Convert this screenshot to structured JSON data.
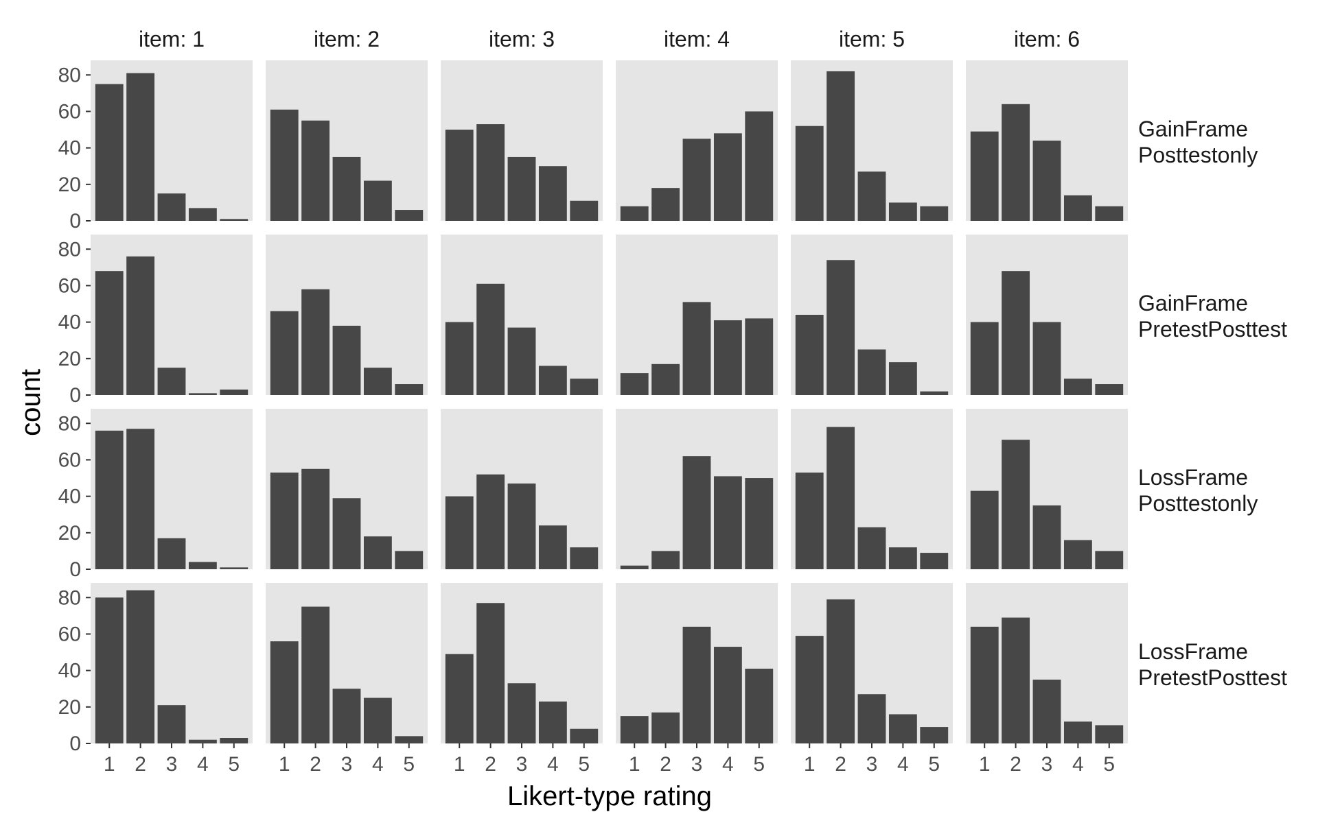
{
  "chart_data": {
    "type": "bar",
    "layout": "facet_grid",
    "xlabel": "Likert-type rating",
    "ylabel": "count",
    "categories": [
      "1",
      "2",
      "3",
      "4",
      "5"
    ],
    "ylim": [
      0,
      88
    ],
    "yticks": [
      0,
      20,
      40,
      60,
      80
    ],
    "grid": false,
    "columns": [
      "item: 1",
      "item: 2",
      "item: 3",
      "item: 4",
      "item: 5",
      "item: 6"
    ],
    "rows": [
      {
        "label": [
          "GainFrame",
          "Posttestonly"
        ],
        "values": [
          [
            75,
            81,
            15,
            7,
            1
          ],
          [
            61,
            55,
            35,
            22,
            6
          ],
          [
            50,
            53,
            35,
            30,
            11
          ],
          [
            8,
            18,
            45,
            48,
            60
          ],
          [
            52,
            82,
            27,
            10,
            8
          ],
          [
            49,
            64,
            44,
            14,
            8
          ]
        ]
      },
      {
        "label": [
          "GainFrame",
          "PretestPosttest"
        ],
        "values": [
          [
            68,
            76,
            15,
            1,
            3
          ],
          [
            46,
            58,
            38,
            15,
            6
          ],
          [
            40,
            61,
            37,
            16,
            9
          ],
          [
            12,
            17,
            51,
            41,
            42
          ],
          [
            44,
            74,
            25,
            18,
            2
          ],
          [
            40,
            68,
            40,
            9,
            6
          ]
        ]
      },
      {
        "label": [
          "LossFrame",
          "Posttestonly"
        ],
        "values": [
          [
            76,
            77,
            17,
            4,
            1
          ],
          [
            53,
            55,
            39,
            18,
            10
          ],
          [
            40,
            52,
            47,
            24,
            12
          ],
          [
            2,
            10,
            62,
            51,
            50
          ],
          [
            53,
            78,
            23,
            12,
            9
          ],
          [
            43,
            71,
            35,
            16,
            10
          ]
        ]
      },
      {
        "label": [
          "LossFrame",
          "PretestPosttest"
        ],
        "values": [
          [
            80,
            84,
            21,
            2,
            3
          ],
          [
            56,
            75,
            30,
            25,
            4
          ],
          [
            49,
            77,
            33,
            23,
            8
          ],
          [
            15,
            17,
            64,
            53,
            41
          ],
          [
            59,
            79,
            27,
            16,
            9
          ],
          [
            64,
            69,
            35,
            12,
            10
          ]
        ]
      }
    ],
    "colors": {
      "bar": "#474747",
      "panel": "#e5e5e5",
      "tick": "#333333"
    }
  }
}
